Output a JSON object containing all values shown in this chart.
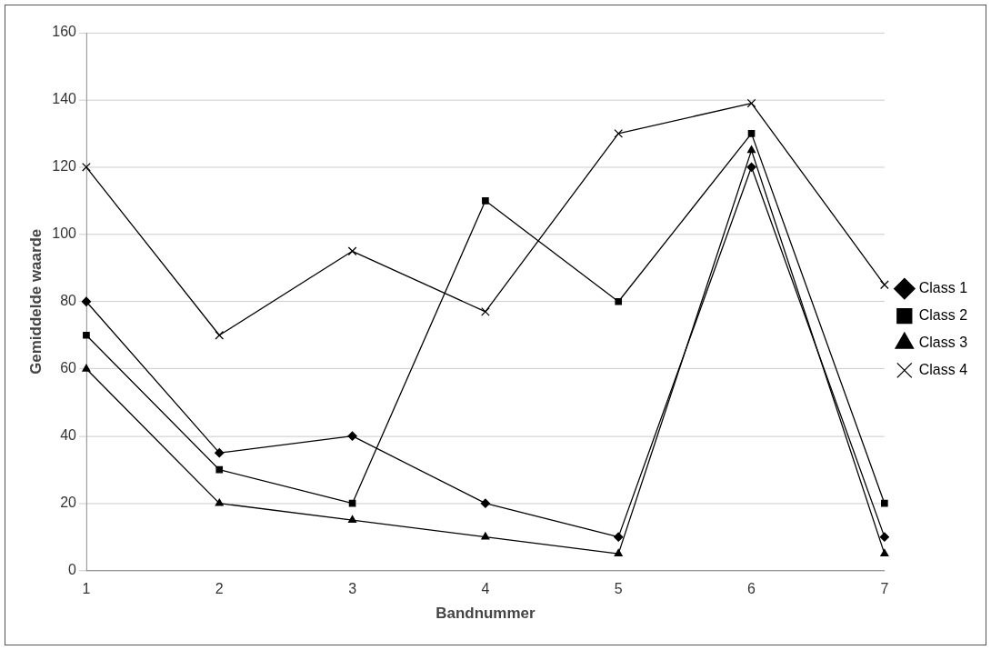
{
  "chart_data": {
    "type": "line",
    "xlabel": "Bandnummer",
    "ylabel": "Gemiddelde waarde",
    "categories": [
      "1",
      "2",
      "3",
      "4",
      "5",
      "6",
      "7"
    ],
    "series": [
      {
        "name": "Class 1",
        "color": "#000000",
        "marker": "diamond",
        "values": [
          80,
          35,
          40,
          20,
          10,
          120,
          10
        ]
      },
      {
        "name": "Class 2",
        "color": "#000000",
        "marker": "square",
        "values": [
          70,
          30,
          20,
          110,
          80,
          130,
          20
        ]
      },
      {
        "name": "Class 3",
        "color": "#000000",
        "marker": "triangle",
        "values": [
          60,
          20,
          15,
          10,
          5,
          125,
          5
        ]
      },
      {
        "name": "Class 4",
        "color": "#000000",
        "marker": "cross",
        "values": [
          120,
          70,
          95,
          77,
          130,
          139,
          85
        ]
      }
    ],
    "ylim": [
      0,
      160
    ],
    "yticks": [
      0,
      20,
      40,
      60,
      80,
      100,
      120,
      140,
      160
    ],
    "grid": "y",
    "legend": "right",
    "line_style": "solid"
  }
}
